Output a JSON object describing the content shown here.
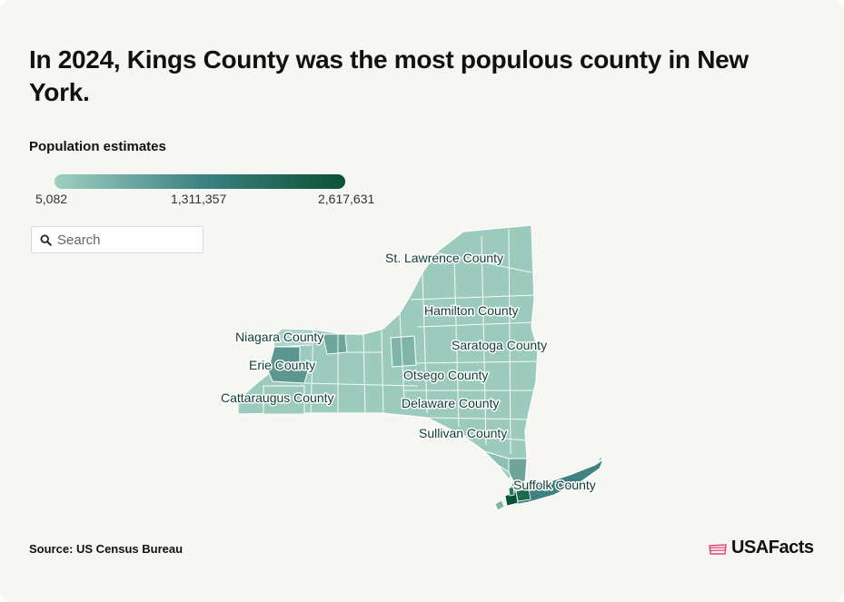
{
  "title": "In 2024, Kings County was the most populous county in New York.",
  "legend": {
    "title": "Population estimates",
    "min": "5,082",
    "mid": "1,311,357",
    "max": "2,617,631",
    "colors": [
      "#9fd0c1",
      "#3d8384",
      "#0a5134"
    ]
  },
  "search": {
    "placeholder": "Search",
    "value": ""
  },
  "map": {
    "region": "New York",
    "labels": {
      "st_lawrence": "St. Lawrence County",
      "hamilton": "Hamilton County",
      "saratoga": "Saratoga County",
      "niagara": "Niagara County",
      "erie": "Erie County",
      "otsego": "Otsego County",
      "cattaraugus": "Cattaraugus County",
      "delaware": "Delaware County",
      "sullivan": "Sullivan County",
      "suffolk": "Suffolk County"
    },
    "fill_colors": {
      "base": "#9ccbbd",
      "light": "#a9d5c8",
      "mid": "#7fb5a6",
      "erie": "#5b9691",
      "monroe": "#6ea59b",
      "suffolk": "#3f8283",
      "kings": "#0a5134"
    }
  },
  "footer": {
    "source": "Source: US Census Bureau",
    "brand": "USAFacts",
    "brand_color": "#e0457b"
  }
}
